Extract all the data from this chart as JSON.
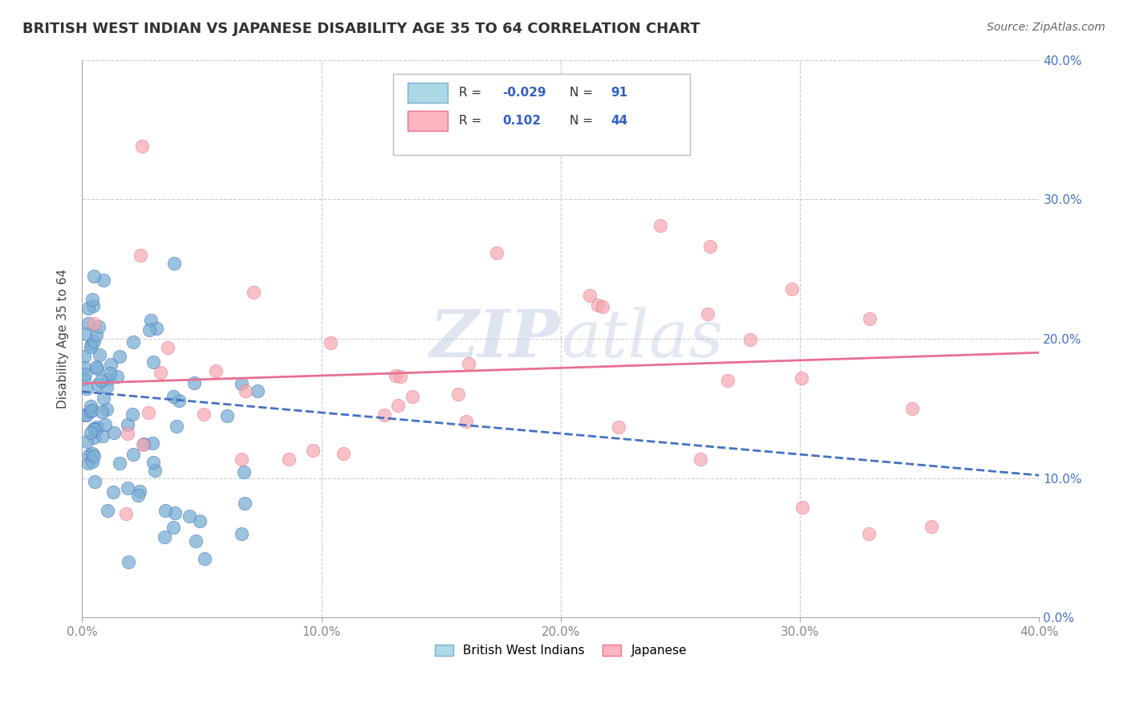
{
  "title": "BRITISH WEST INDIAN VS JAPANESE DISABILITY AGE 35 TO 64 CORRELATION CHART",
  "source": "Source: ZipAtlas.com",
  "xlabel": "",
  "ylabel": "Disability Age 35 to 64",
  "xlim": [
    0.0,
    0.4
  ],
  "ylim": [
    0.0,
    0.4
  ],
  "xticks": [
    0.0,
    0.1,
    0.2,
    0.3,
    0.4
  ],
  "yticks": [
    0.0,
    0.1,
    0.2,
    0.3,
    0.4
  ],
  "series1_label": "British West Indians",
  "series1_color": "#7bafd4",
  "series1_edge": "#4472c4",
  "series1_R": "-0.029",
  "series1_N": "91",
  "series2_label": "Japanese",
  "series2_color": "#f4a7b0",
  "series2_edge": "#e87090",
  "series2_R": "0.102",
  "series2_N": "44",
  "trend1_color": "#4472c4",
  "trend2_color": "#e87090",
  "legend_box_color": "#add8e6",
  "legend_box2_color": "#ffb6c1",
  "background_color": "#ffffff",
  "grid_color": "#cccccc",
  "watermark_color": "#d0d8e8",
  "tick_color_right": "#4472c4",
  "tick_color_bottom": "#888888",
  "trend1_y0": 0.162,
  "trend1_y1": 0.102,
  "trend2_y0": 0.168,
  "trend2_y1": 0.19
}
